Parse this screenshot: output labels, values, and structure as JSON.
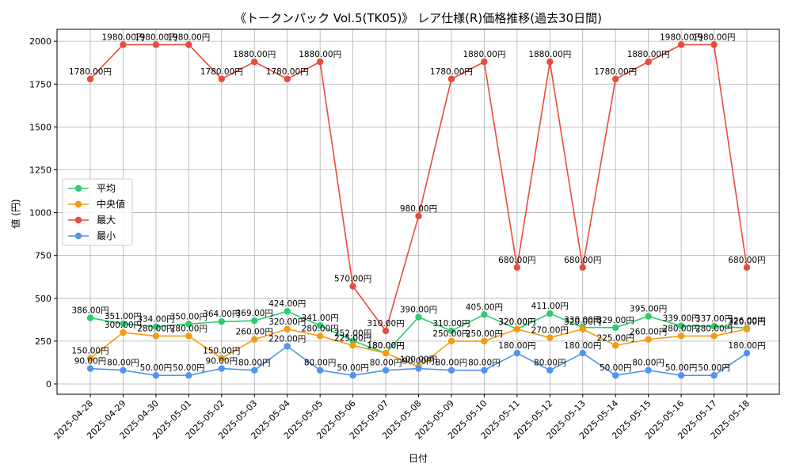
{
  "chart_data": {
    "type": "line",
    "title": "《トークンパック Vol.5(TK05)》 レア仕様(R)価格推移(過去30日間)",
    "xlabel": "日付",
    "ylabel": "値 (円)",
    "ylim": [
      -60,
      2070
    ],
    "yticks": [
      0,
      250,
      500,
      750,
      1000,
      1250,
      1500,
      1750,
      2000
    ],
    "grid": true,
    "legend_position": "center-left",
    "value_suffix": "円",
    "x": [
      "2025-04-28",
      "2025-04-29",
      "2025-04-30",
      "2025-05-01",
      "2025-05-02",
      "2025-05-03",
      "2025-05-04",
      "2025-05-05",
      "2025-05-06",
      "2025-05-07",
      "2025-05-08",
      "2025-05-09",
      "2025-05-10",
      "2025-05-11",
      "2025-05-12",
      "2025-05-13",
      "2025-05-14",
      "2025-05-15",
      "2025-05-16",
      "2025-05-17",
      "2025-05-18"
    ],
    "series": [
      {
        "name": "平均",
        "color": "#2ecc71",
        "values": [
          386,
          351,
          334,
          350,
          364,
          369,
          424,
          341,
          252,
          180,
          390,
          310,
          405,
          320,
          411,
          330,
          329,
          395,
          339,
          337,
          326
        ]
      },
      {
        "name": "中央値",
        "color": "#f39c12",
        "values": [
          150,
          300,
          280,
          280,
          150,
          260,
          320,
          280,
          225,
          180,
          100,
          250,
          250,
          320,
          270,
          320,
          225,
          260,
          280,
          280,
          320
        ]
      },
      {
        "name": "最大",
        "color": "#e74c3c",
        "values": [
          1780,
          1980,
          1980,
          1980,
          1780,
          1880,
          1780,
          1880,
          570,
          310,
          980,
          1780,
          1880,
          680,
          1880,
          680,
          1780,
          1880,
          1980,
          1980,
          680
        ]
      },
      {
        "name": "最小",
        "color": "#4f94f0",
        "values": [
          90,
          80,
          50,
          50,
          90,
          80,
          220,
          80,
          50,
          80,
          90,
          80,
          80,
          180,
          80,
          180,
          50,
          80,
          50,
          50,
          180
        ]
      }
    ]
  }
}
